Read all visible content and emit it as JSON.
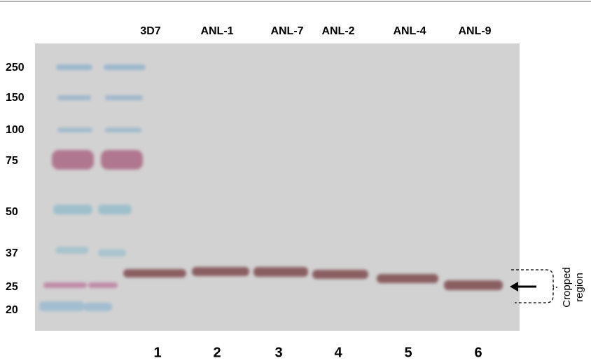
{
  "lanes": {
    "labels": [
      "3D7",
      "ANL-1",
      "ANL-7",
      "ANL-2",
      "ANL-4",
      "ANL-9"
    ],
    "numbers": [
      "1",
      "2",
      "3",
      "4",
      "5",
      "6"
    ]
  },
  "markers": [
    "250",
    "150",
    "100",
    "75",
    "50",
    "37",
    "25",
    "20"
  ],
  "annotation": {
    "line1": "Cropped",
    "line2": "region"
  }
}
